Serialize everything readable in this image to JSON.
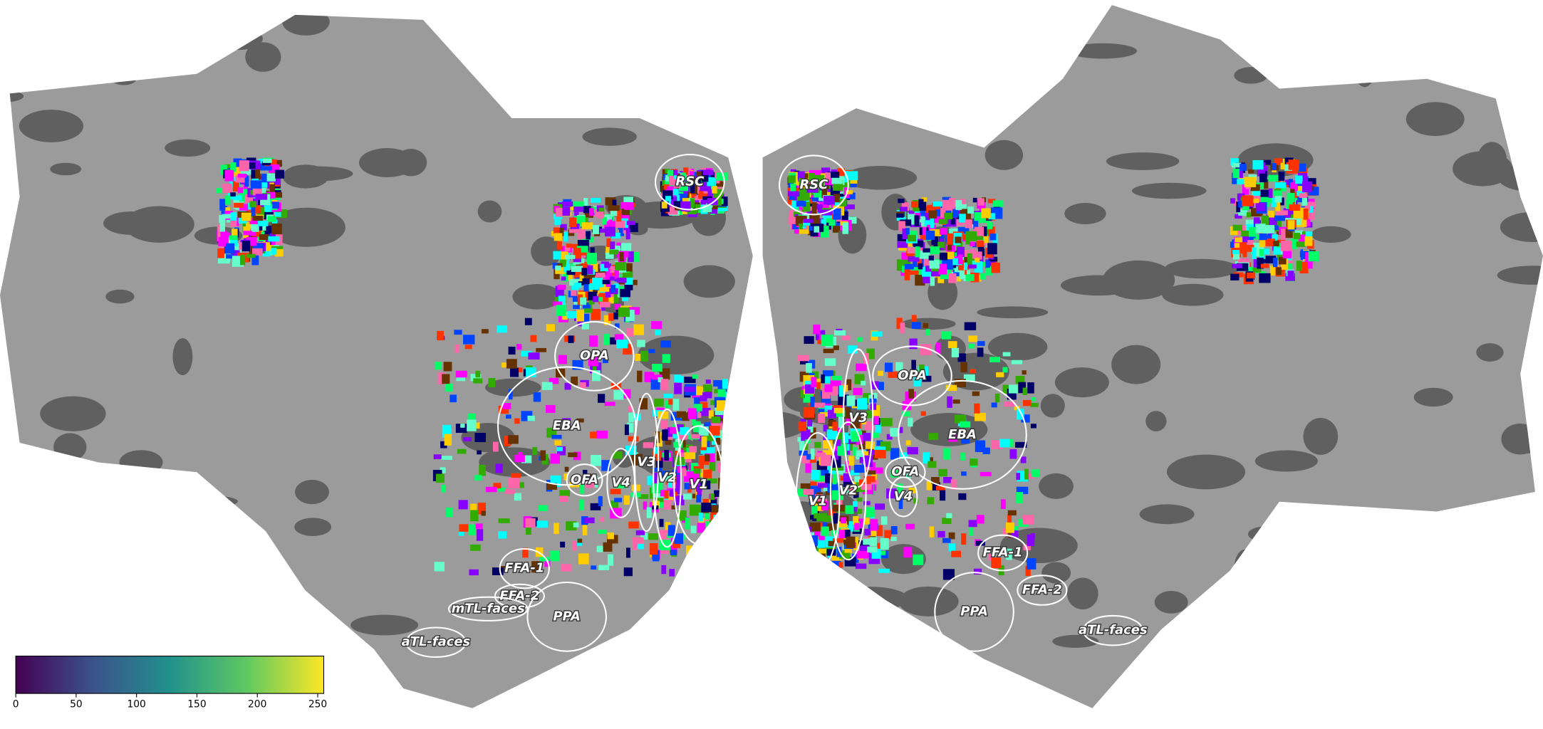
{
  "left_hemisphere": {
    "regions": [
      "RSC",
      "OPA",
      "EBA",
      "OFA",
      "V4",
      "V3",
      "V2",
      "V1",
      "FFA-1",
      "FFA-2",
      "mTL-faces",
      "PPA",
      "aTL-faces"
    ]
  },
  "right_hemisphere": {
    "regions": [
      "RSC",
      "OPA",
      "V3",
      "EBA",
      "OFA",
      "V4",
      "V2",
      "V1",
      "FFA-1",
      "FFA-2",
      "PPA",
      "aTL-faces"
    ]
  },
  "colorbar": {
    "range": [
      0,
      255
    ],
    "ticks": [
      0,
      50,
      100,
      150,
      200,
      250
    ],
    "colormap": "viridis"
  }
}
